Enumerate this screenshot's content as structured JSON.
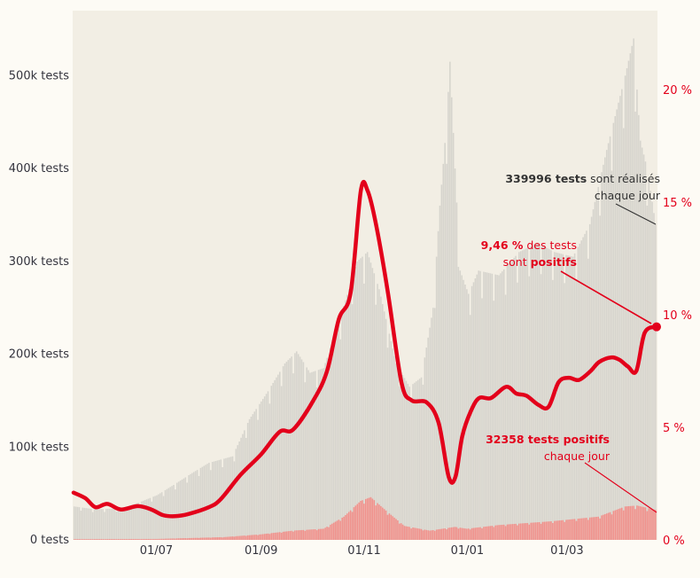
{
  "chart_data": {
    "type": "bar",
    "left_axis": {
      "ylim": [
        0,
        570000
      ],
      "ticks": [
        {
          "value": 0,
          "label": "0 tests"
        },
        {
          "value": 100000,
          "label": "100k tests"
        },
        {
          "value": 200000,
          "label": "200k tests"
        },
        {
          "value": 300000,
          "label": "300k tests"
        },
        {
          "value": 400000,
          "label": "400k tests"
        },
        {
          "value": 500000,
          "label": "500k tests"
        }
      ]
    },
    "right_axis": {
      "ylim": [
        0,
        23.5
      ],
      "ticks": [
        {
          "value": 0,
          "label": "0 %"
        },
        {
          "value": 5,
          "label": "5 %"
        },
        {
          "value": 10,
          "label": "10 %"
        },
        {
          "value": 15,
          "label": "15 %"
        },
        {
          "value": 20,
          "label": "20 %"
        }
      ]
    },
    "x_axis": {
      "start": "2020-05-13",
      "end": "2021-04-23",
      "ticks": [
        {
          "date": "2020-07-01",
          "label": "01/07"
        },
        {
          "date": "2020-09-01",
          "label": "01/09"
        },
        {
          "date": "2020-11-01",
          "label": "01/11"
        },
        {
          "date": "2021-01-01",
          "label": "01/01"
        },
        {
          "date": "2021-03-01",
          "label": "01/03"
        }
      ]
    },
    "series": [
      {
        "kind": "bar",
        "axis": "left",
        "color": "#d6d4cd",
        "points": [
          [
            "2020-05-13",
            36000
          ],
          [
            "2020-05-25",
            33000
          ],
          [
            "2020-06-10",
            34000
          ],
          [
            "2020-06-20",
            40000
          ],
          [
            "2020-07-01",
            48000
          ],
          [
            "2020-07-10",
            58000
          ],
          [
            "2020-07-22",
            72000
          ],
          [
            "2020-08-01",
            83000
          ],
          [
            "2020-08-15",
            90000
          ],
          [
            "2020-08-25",
            130000
          ],
          [
            "2020-09-05",
            160000
          ],
          [
            "2020-09-15",
            190000
          ],
          [
            "2020-09-22",
            203000
          ],
          [
            "2020-09-30",
            180000
          ],
          [
            "2020-10-08",
            185000
          ],
          [
            "2020-10-18",
            240000
          ],
          [
            "2020-10-28",
            300000
          ],
          [
            "2020-11-03",
            310000
          ],
          [
            "2020-11-10",
            270000
          ],
          [
            "2020-11-20",
            190000
          ],
          [
            "2020-11-28",
            165000
          ],
          [
            "2020-12-05",
            175000
          ],
          [
            "2020-12-12",
            250000
          ],
          [
            "2020-12-16",
            360000
          ],
          [
            "2020-12-20",
            450000
          ],
          [
            "2020-12-22",
            515000
          ],
          [
            "2020-12-25",
            400000
          ],
          [
            "2020-12-28",
            290000
          ],
          [
            "2021-01-02",
            265000
          ],
          [
            "2021-01-08",
            290000
          ],
          [
            "2021-01-20",
            285000
          ],
          [
            "2021-02-01",
            310000
          ],
          [
            "2021-02-12",
            320000
          ],
          [
            "2021-02-22",
            310000
          ],
          [
            "2021-03-05",
            305000
          ],
          [
            "2021-03-15",
            340000
          ],
          [
            "2021-03-25",
            420000
          ],
          [
            "2021-04-05",
            500000
          ],
          [
            "2021-04-10",
            540000
          ],
          [
            "2021-04-14",
            430000
          ],
          [
            "2021-04-18",
            400000
          ],
          [
            "2021-04-23",
            340000
          ]
        ]
      },
      {
        "kind": "bar",
        "axis": "left",
        "color": "#f08f8a",
        "points": [
          [
            "2020-05-13",
            800
          ],
          [
            "2020-07-01",
            1000
          ],
          [
            "2020-08-10",
            3000
          ],
          [
            "2020-09-01",
            6000
          ],
          [
            "2020-09-20",
            10000
          ],
          [
            "2020-10-08",
            12000
          ],
          [
            "2020-10-20",
            25000
          ],
          [
            "2020-10-30",
            42000
          ],
          [
            "2020-11-05",
            46000
          ],
          [
            "2020-11-15",
            30000
          ],
          [
            "2020-11-25",
            15000
          ],
          [
            "2020-12-10",
            10000
          ],
          [
            "2020-12-25",
            14000
          ],
          [
            "2021-01-01",
            12000
          ],
          [
            "2021-01-20",
            16000
          ],
          [
            "2021-02-20",
            20000
          ],
          [
            "2021-03-20",
            25000
          ],
          [
            "2021-04-05",
            36000
          ],
          [
            "2021-04-12",
            37000
          ],
          [
            "2021-04-23",
            32358
          ]
        ]
      },
      {
        "kind": "line",
        "axis": "right",
        "color": "#e3001b",
        "points": [
          [
            "2020-05-13",
            2.1
          ],
          [
            "2020-05-20",
            1.85
          ],
          [
            "2020-05-26",
            1.45
          ],
          [
            "2020-06-02",
            1.6
          ],
          [
            "2020-06-10",
            1.35
          ],
          [
            "2020-06-20",
            1.5
          ],
          [
            "2020-06-28",
            1.35
          ],
          [
            "2020-07-05",
            1.1
          ],
          [
            "2020-07-12",
            1.05
          ],
          [
            "2020-07-20",
            1.15
          ],
          [
            "2020-08-01",
            1.45
          ],
          [
            "2020-08-08",
            1.8
          ],
          [
            "2020-08-20",
            2.9
          ],
          [
            "2020-09-01",
            3.8
          ],
          [
            "2020-09-12",
            4.8
          ],
          [
            "2020-09-20",
            4.9
          ],
          [
            "2020-10-02",
            6.2
          ],
          [
            "2020-10-10",
            7.5
          ],
          [
            "2020-10-17",
            9.8
          ],
          [
            "2020-10-24",
            11.0
          ],
          [
            "2020-10-30",
            15.5
          ],
          [
            "2020-11-03",
            15.5
          ],
          [
            "2020-11-08",
            14.0
          ],
          [
            "2020-11-15",
            11.0
          ],
          [
            "2020-11-23",
            7.0
          ],
          [
            "2020-11-29",
            6.2
          ],
          [
            "2020-12-08",
            6.1
          ],
          [
            "2020-12-15",
            5.2
          ],
          [
            "2020-12-21",
            2.8
          ],
          [
            "2020-12-25",
            2.8
          ],
          [
            "2020-12-29",
            4.6
          ],
          [
            "2021-01-03",
            5.7
          ],
          [
            "2021-01-08",
            6.3
          ],
          [
            "2021-01-15",
            6.3
          ],
          [
            "2021-01-24",
            6.8
          ],
          [
            "2021-01-30",
            6.5
          ],
          [
            "2021-02-05",
            6.4
          ],
          [
            "2021-02-12",
            6.0
          ],
          [
            "2021-02-18",
            5.9
          ],
          [
            "2021-02-24",
            7.0
          ],
          [
            "2021-03-02",
            7.2
          ],
          [
            "2021-03-08",
            7.1
          ],
          [
            "2021-03-15",
            7.5
          ],
          [
            "2021-03-20",
            7.9
          ],
          [
            "2021-03-27",
            8.1
          ],
          [
            "2021-04-01",
            8.0
          ],
          [
            "2021-04-06",
            7.7
          ],
          [
            "2021-04-11",
            7.5
          ],
          [
            "2021-04-16",
            9.2
          ],
          [
            "2021-04-23",
            9.46
          ]
        ]
      }
    ],
    "annotations": [
      {
        "id": "tests",
        "color": "#333333",
        "lines": [
          [
            {
              "text": "339996 tests",
              "bold": true
            },
            {
              "text": " sont réalisés",
              "bold": false
            }
          ],
          [
            {
              "text": "chaque jour",
              "bold": false
            }
          ]
        ]
      },
      {
        "id": "positivity",
        "color": "#e3001b",
        "lines": [
          [
            {
              "text": "9,46 %",
              "bold": true
            },
            {
              "text": " des tests",
              "bold": false
            }
          ],
          [
            {
              "text": "sont ",
              "bold": false
            },
            {
              "text": "positifs",
              "bold": true
            }
          ]
        ]
      },
      {
        "id": "positives",
        "color": "#e3001b",
        "lines": [
          [
            {
              "text": "32358 tests positifs",
              "bold": true
            }
          ],
          [
            {
              "text": "chaque jour",
              "bold": false
            }
          ]
        ]
      }
    ]
  }
}
